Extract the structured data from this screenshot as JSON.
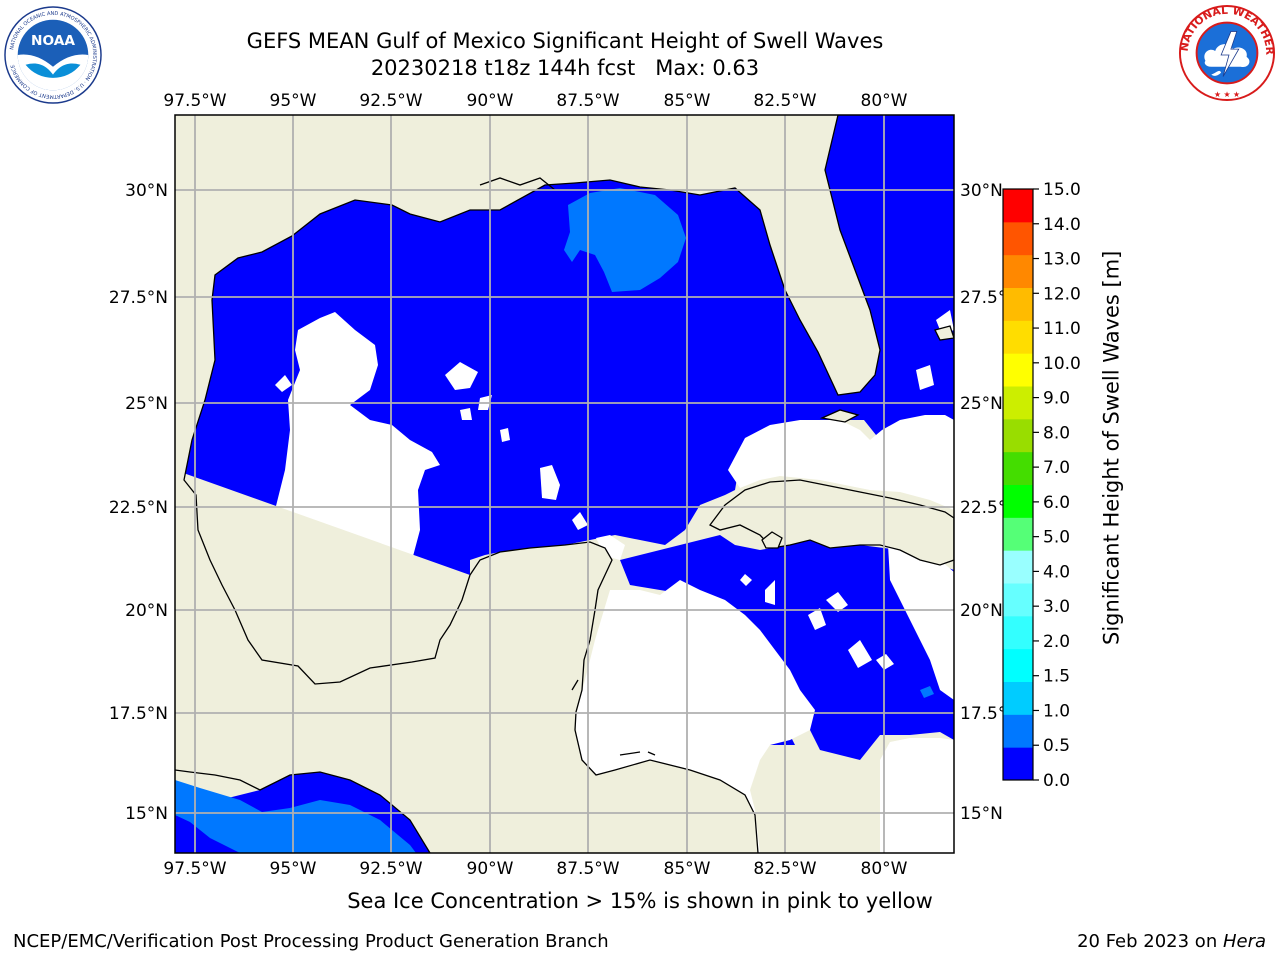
{
  "title": {
    "line1": "GEFS MEAN Gulf of Mexico Significant Height of Swell Waves",
    "line2": "20230218 t18z 144h fcst   Max: 0.63"
  },
  "map": {
    "lon_ticks": [
      "97.5°W",
      "95°W",
      "92.5°W",
      "90°W",
      "87.5°W",
      "85°W",
      "82.5°W",
      "80°W"
    ],
    "lat_ticks_left": [
      "30°N",
      "27.5°N",
      "25°N",
      "22.5°N",
      "20°N",
      "17.5°N",
      "15°N"
    ],
    "lat_ticks_right": [
      "30°N",
      "27.5°N",
      "25°N",
      "22.5°N",
      "20°N",
      "17.5°N",
      "15°N"
    ],
    "lon_range": [
      -98,
      -78.2
    ],
    "lat_range": [
      14,
      31.8
    ],
    "grid": true,
    "land_color": "#efefdc",
    "ocean_fill_color": "#0000ff",
    "no_swell_color": "#ffffff"
  },
  "colorbar": {
    "label": "Significant Height of Swell Waves [m]",
    "tick_labels": [
      "15.0",
      "14.0",
      "13.0",
      "12.0",
      "11.0",
      "10.0",
      "9.0",
      "8.0",
      "7.0",
      "6.0",
      "5.0",
      "4.0",
      "3.0",
      "2.0",
      "1.5",
      "1.0",
      "0.5",
      "0.0"
    ],
    "colors": [
      "#0000ff",
      "#0078ff",
      "#00ccff",
      "#00ffff",
      "#33ffff",
      "#66ffff",
      "#99ffff",
      "#55ff77",
      "#00ff00",
      "#44dd00",
      "#99dd00",
      "#ccee00",
      "#ffff00",
      "#ffdd00",
      "#ffbb00",
      "#ff8800",
      "#ff5500",
      "#ff0000"
    ]
  },
  "subtitle": "Sea Ice Concentration > 15% is shown in pink to yellow",
  "footer": {
    "left": "NCEP/EMC/Verification Post Processing Product Generation Branch",
    "right_prefix": "20 Feb 2023 on ",
    "right_em": "Hera"
  },
  "logos": {
    "left": {
      "name": "NOAA",
      "ring_text": "NATIONAL OCEANIC AND ATMOSPHERIC ADMINISTRATION · U.S. DEPARTMENT OF COMMERCE"
    },
    "right": {
      "ring_text": "NATIONAL WEATHER SERVICE"
    }
  }
}
